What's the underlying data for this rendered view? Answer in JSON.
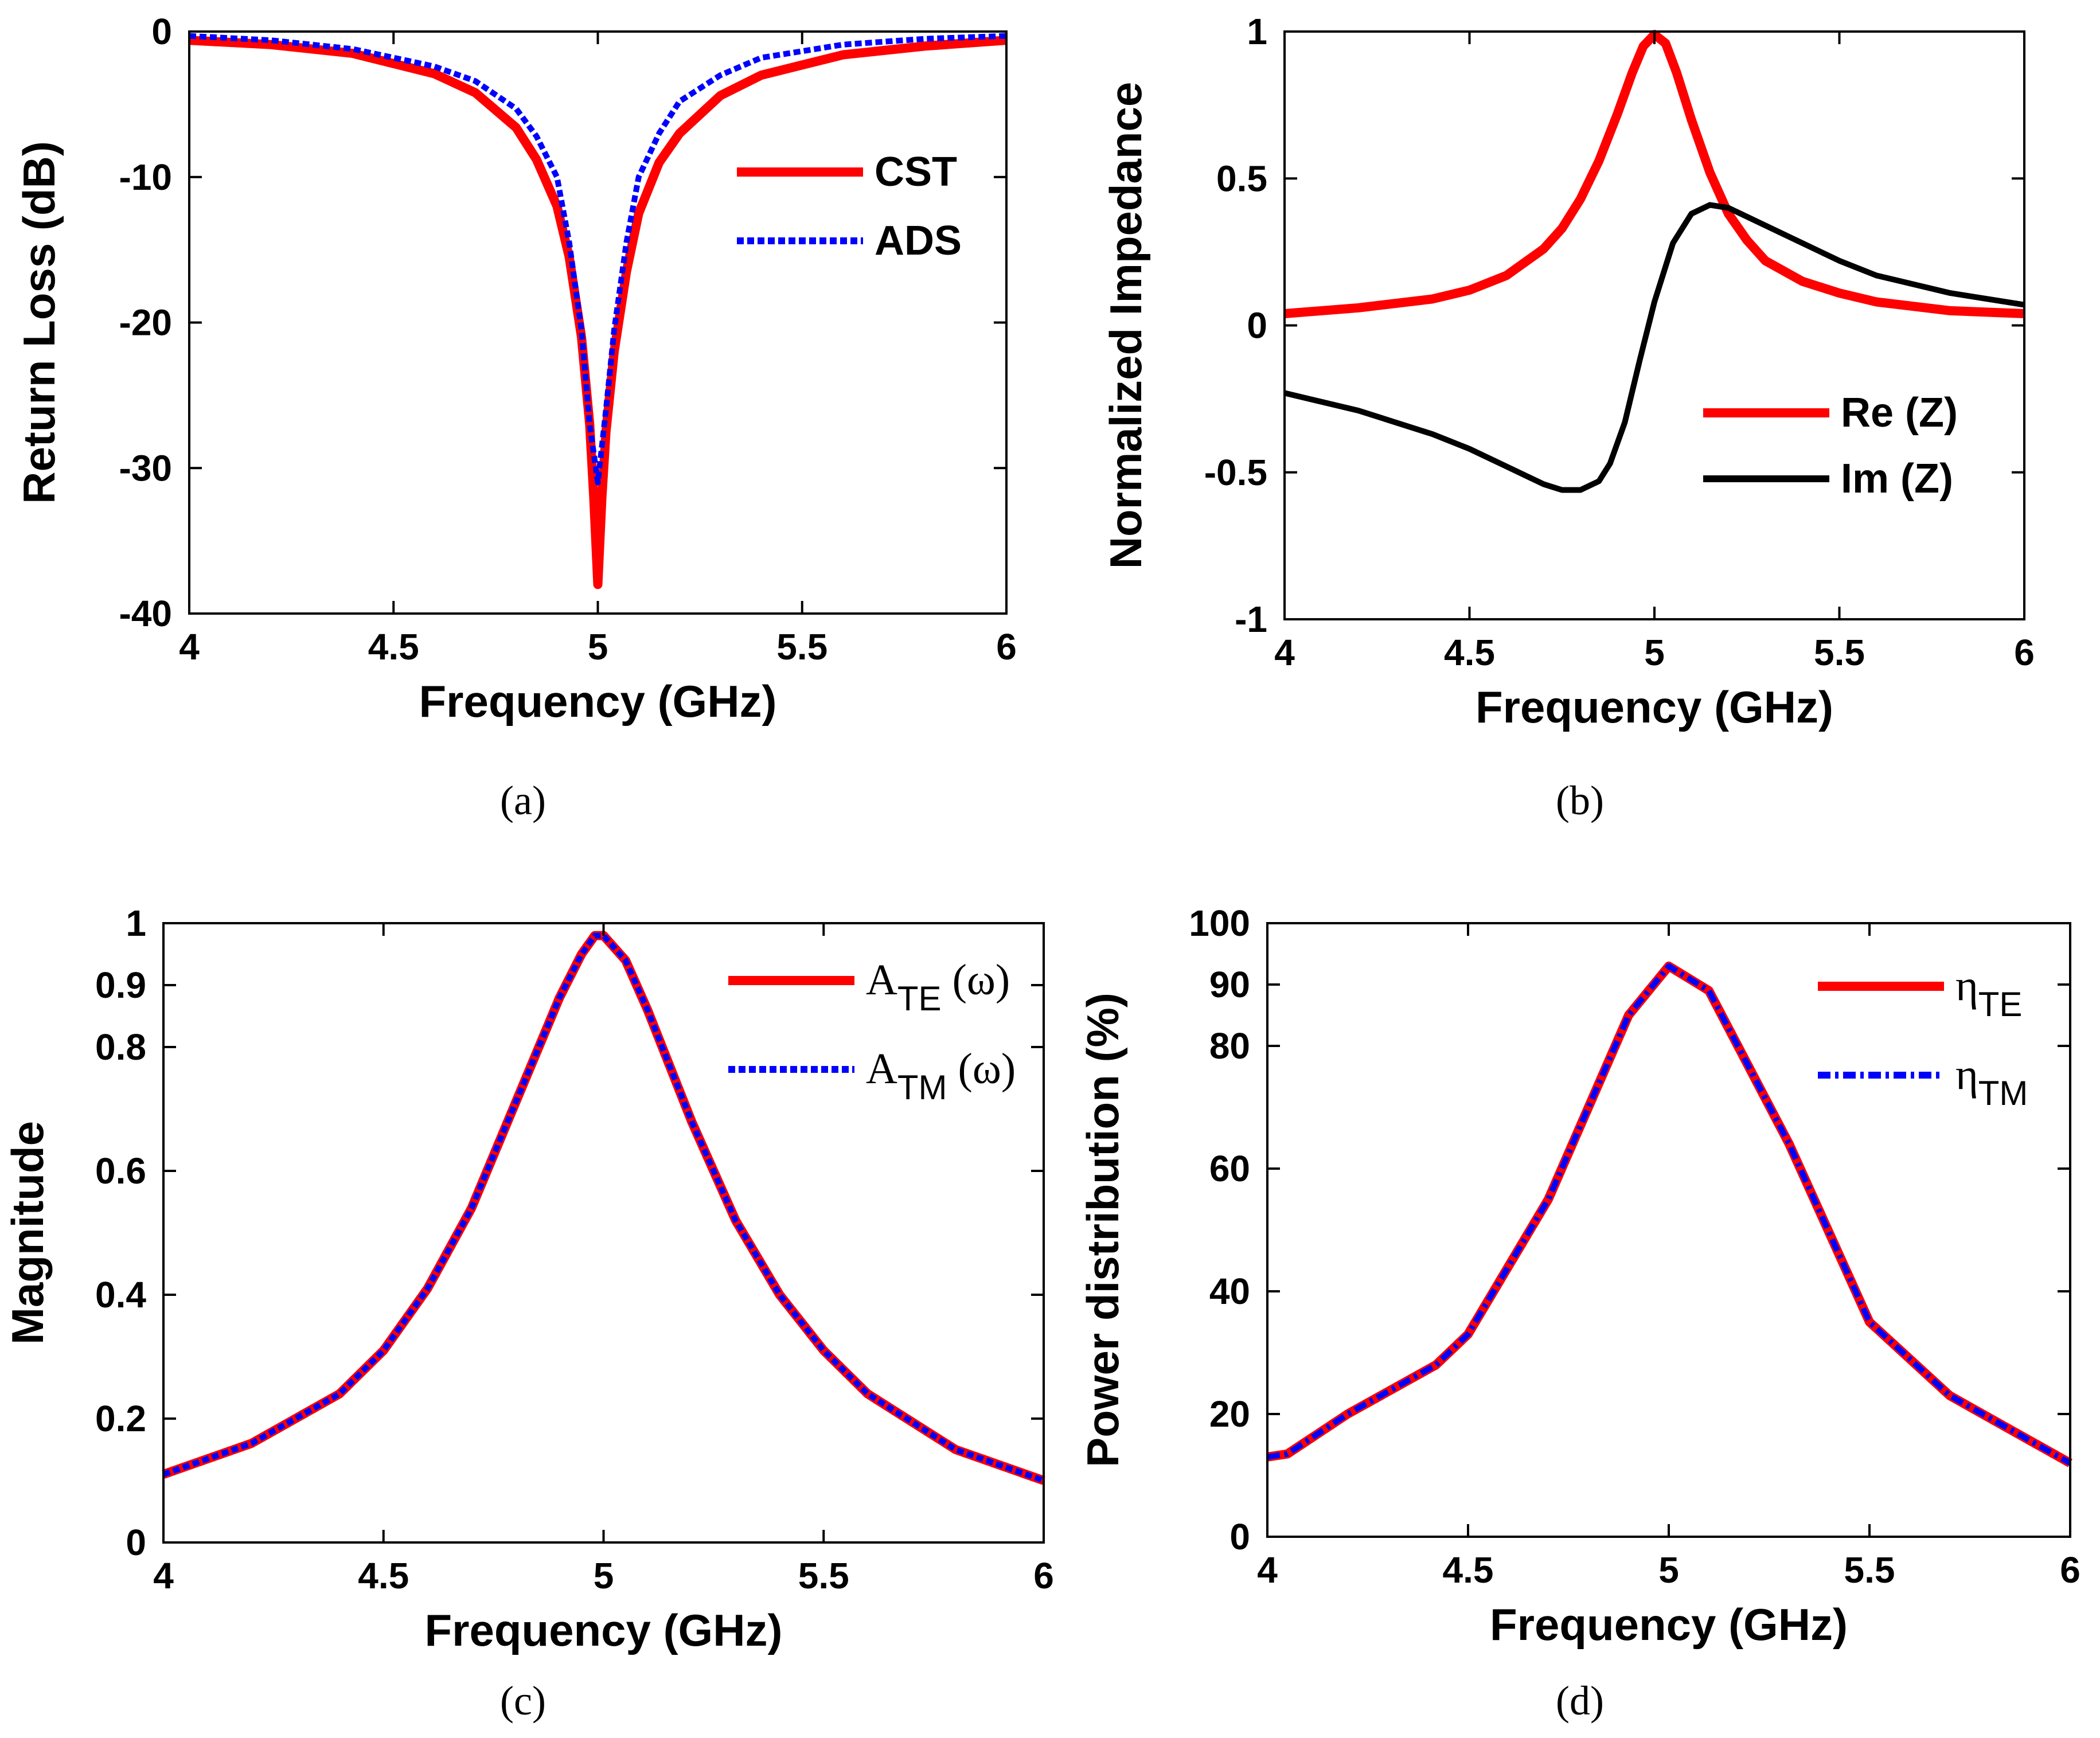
{
  "chart_data": [
    {
      "id": "a",
      "type": "line",
      "caption": "(a)",
      "xlabel": "Frequency (GHz)",
      "ylabel": "Return Loss (dB)",
      "xlim": [
        4,
        6
      ],
      "ylim": [
        -40,
        0
      ],
      "xticks": [
        4,
        4.5,
        5,
        5.5,
        6
      ],
      "xtick_labels": [
        "4",
        "4.5",
        "5",
        "5.5",
        "6"
      ],
      "yticks": [
        -40,
        -30,
        -20,
        -10,
        0
      ],
      "ytick_labels": [
        "-40",
        "-30",
        "-20",
        "-10",
        "0"
      ],
      "legend_position": "right",
      "series": [
        {
          "name": "CST",
          "color": "#ff0000",
          "style": "solid",
          "x": [
            4.0,
            4.2,
            4.4,
            4.6,
            4.7,
            4.8,
            4.85,
            4.9,
            4.93,
            4.96,
            4.98,
            4.99,
            5.0,
            5.01,
            5.02,
            5.04,
            5.07,
            5.1,
            5.15,
            5.2,
            5.3,
            5.4,
            5.6,
            5.8,
            6.0
          ],
          "y": [
            -0.6,
            -0.9,
            -1.5,
            -2.9,
            -4.2,
            -6.6,
            -8.8,
            -12.0,
            -15.5,
            -21.0,
            -27.0,
            -32.0,
            -38.0,
            -32.0,
            -27.5,
            -22.0,
            -16.5,
            -12.5,
            -9.0,
            -7.0,
            -4.4,
            -3.0,
            -1.6,
            -1.0,
            -0.6
          ]
        },
        {
          "name": "ADS",
          "color": "#0000ff",
          "style": "dotted",
          "x": [
            4.0,
            4.2,
            4.4,
            4.6,
            4.7,
            4.8,
            4.85,
            4.9,
            4.93,
            4.96,
            4.98,
            5.0,
            5.02,
            5.04,
            5.07,
            5.1,
            5.15,
            5.2,
            5.3,
            5.4,
            5.6,
            5.8,
            6.0
          ],
          "y": [
            -0.3,
            -0.6,
            -1.2,
            -2.4,
            -3.4,
            -5.3,
            -7.2,
            -10.0,
            -14.5,
            -20.5,
            -27.0,
            -31.0,
            -26.0,
            -20.5,
            -14.5,
            -10.0,
            -7.0,
            -4.8,
            -3.0,
            -1.8,
            -0.9,
            -0.5,
            -0.3
          ]
        }
      ]
    },
    {
      "id": "b",
      "type": "line",
      "caption": "(b)",
      "xlabel": "Frequency (GHz)",
      "ylabel": "Normalized Impedance",
      "xlim": [
        4,
        6
      ],
      "ylim": [
        -1,
        1
      ],
      "xticks": [
        4,
        4.5,
        5,
        5.5,
        6
      ],
      "xtick_labels": [
        "4",
        "4.5",
        "5",
        "5.5",
        "6"
      ],
      "yticks": [
        -1,
        -0.5,
        0,
        0.5,
        1
      ],
      "ytick_labels": [
        "-1",
        "-0.5",
        "0",
        "0.5",
        "1"
      ],
      "legend_position": "lower-right",
      "series": [
        {
          "name": "Re (Z)",
          "color": "#ff0000",
          "style": "solid",
          "x": [
            4.0,
            4.2,
            4.4,
            4.5,
            4.6,
            4.7,
            4.75,
            4.8,
            4.85,
            4.9,
            4.94,
            4.97,
            5.0,
            5.03,
            5.06,
            5.1,
            5.15,
            5.2,
            5.25,
            5.3,
            5.4,
            5.5,
            5.6,
            5.8,
            6.0
          ],
          "y": [
            0.04,
            0.06,
            0.09,
            0.12,
            0.17,
            0.26,
            0.33,
            0.43,
            0.56,
            0.72,
            0.86,
            0.95,
            0.99,
            0.96,
            0.86,
            0.7,
            0.52,
            0.38,
            0.29,
            0.22,
            0.15,
            0.11,
            0.08,
            0.05,
            0.04
          ]
        },
        {
          "name": "Im (Z)",
          "color": "#000000",
          "style": "solid",
          "x": [
            4.0,
            4.2,
            4.4,
            4.5,
            4.6,
            4.7,
            4.75,
            4.8,
            4.85,
            4.88,
            4.92,
            4.96,
            5.0,
            5.05,
            5.1,
            5.15,
            5.2,
            5.25,
            5.3,
            5.4,
            5.5,
            5.6,
            5.8,
            6.0
          ],
          "y": [
            -0.23,
            -0.29,
            -0.37,
            -0.42,
            -0.48,
            -0.54,
            -0.56,
            -0.56,
            -0.53,
            -0.47,
            -0.33,
            -0.12,
            0.08,
            0.28,
            0.38,
            0.41,
            0.4,
            0.37,
            0.34,
            0.28,
            0.22,
            0.17,
            0.11,
            0.07
          ]
        }
      ]
    },
    {
      "id": "c",
      "type": "line",
      "caption": "(c)",
      "xlabel": "Frequency (GHz)",
      "ylabel": "Magnitude",
      "xlim": [
        4,
        6
      ],
      "ylim": [
        0,
        1
      ],
      "xticks": [
        4,
        4.5,
        5,
        5.5,
        6
      ],
      "xtick_labels": [
        "4",
        "4.5",
        "5",
        "5.5",
        "6"
      ],
      "yticks": [
        0,
        0.2,
        0.4,
        0.6,
        0.8,
        0.9,
        1
      ],
      "ytick_labels": [
        "0",
        "0.2",
        "0.4",
        "0.6",
        "0.8",
        "0.9",
        "1"
      ],
      "legend_position": "top-right",
      "series": [
        {
          "name": "A",
          "subscript": "TE",
          "suffix": " (ω)",
          "color": "#ff0000",
          "style": "solid",
          "x": [
            4.0,
            4.2,
            4.4,
            4.5,
            4.6,
            4.7,
            4.8,
            4.9,
            4.95,
            4.98,
            5.0,
            5.05,
            5.1,
            5.2,
            5.3,
            5.4,
            5.5,
            5.6,
            5.8,
            6.0
          ],
          "y": [
            0.11,
            0.16,
            0.24,
            0.31,
            0.41,
            0.54,
            0.71,
            0.88,
            0.95,
            0.98,
            0.98,
            0.94,
            0.86,
            0.68,
            0.52,
            0.4,
            0.31,
            0.24,
            0.15,
            0.1
          ]
        },
        {
          "name": "A",
          "subscript": "TM",
          "suffix": " (ω)",
          "color": "#0000ff",
          "style": "dotted",
          "x": [
            4.0,
            4.2,
            4.4,
            4.5,
            4.6,
            4.7,
            4.8,
            4.9,
            4.95,
            4.98,
            5.0,
            5.05,
            5.1,
            5.2,
            5.3,
            5.4,
            5.5,
            5.6,
            5.8,
            6.0
          ],
          "y": [
            0.11,
            0.16,
            0.24,
            0.31,
            0.41,
            0.54,
            0.71,
            0.88,
            0.95,
            0.98,
            0.98,
            0.94,
            0.86,
            0.68,
            0.52,
            0.4,
            0.31,
            0.24,
            0.15,
            0.1
          ]
        }
      ]
    },
    {
      "id": "d",
      "type": "line",
      "caption": "(d)",
      "xlabel": "Frequency (GHz)",
      "ylabel": "Power distribution (%)",
      "xlim": [
        4,
        6
      ],
      "ylim": [
        0,
        100
      ],
      "xticks": [
        4,
        4.5,
        5,
        5.5,
        6
      ],
      "xtick_labels": [
        "4",
        "4.5",
        "5",
        "5.5",
        "6"
      ],
      "yticks": [
        0,
        20,
        40,
        60,
        80,
        90,
        100
      ],
      "ytick_labels": [
        "0",
        "20",
        "40",
        "60",
        "80",
        "90",
        "100"
      ],
      "legend_position": "top-right",
      "series": [
        {
          "name": "η",
          "subscript": "TE",
          "suffix": "",
          "color": "#ff0000",
          "style": "solid",
          "x": [
            4.0,
            4.05,
            4.2,
            4.42,
            4.5,
            4.7,
            4.9,
            5.0,
            5.1,
            5.3,
            5.5,
            5.7,
            6.0
          ],
          "y": [
            13,
            13.5,
            20,
            28,
            33,
            55,
            85,
            93,
            89,
            64,
            35,
            23,
            12
          ]
        },
        {
          "name": "η",
          "subscript": "TM",
          "suffix": "",
          "color": "#0000ff",
          "style": "dashdot",
          "x": [
            4.0,
            4.05,
            4.2,
            4.42,
            4.5,
            4.7,
            4.9,
            5.0,
            5.1,
            5.3,
            5.5,
            5.7,
            6.0
          ],
          "y": [
            13,
            13.5,
            20,
            28,
            33,
            55,
            85,
            93,
            89,
            64,
            35,
            23,
            12
          ]
        }
      ]
    }
  ]
}
